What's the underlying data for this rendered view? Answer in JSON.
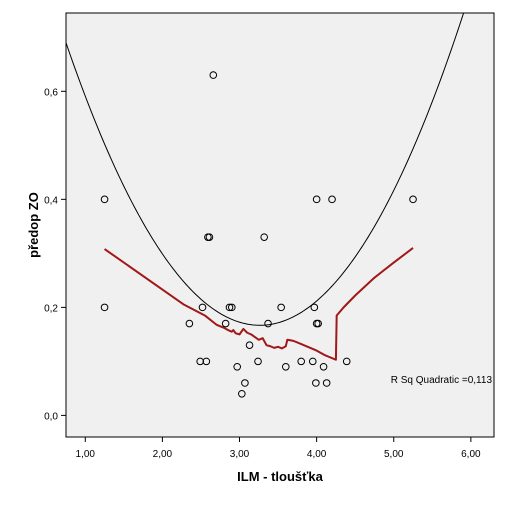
{
  "chart_data": {
    "type": "scatter",
    "xlabel": "ILM - tloušťka",
    "ylabel": "předop ZO",
    "xlim": [
      0.75,
      6.3
    ],
    "ylim": [
      -0.04,
      0.745
    ],
    "x_ticks": [
      1.0,
      2.0,
      3.0,
      4.0,
      5.0,
      6.0
    ],
    "x_tick_labels": [
      "1,00",
      "2,00",
      "3,00",
      "4,00",
      "5,00",
      "6,00"
    ],
    "y_ticks": [
      0.0,
      0.2,
      0.4,
      0.6
    ],
    "y_tick_labels": [
      "0,0",
      "0,2",
      "0,4",
      "0,6"
    ],
    "grid": false,
    "colors": {
      "plot_background": "#f0f0f0",
      "points": "#000000",
      "quadratic_fit": "#000000",
      "loess_line": "#a01818"
    },
    "points": [
      {
        "x": 1.25,
        "y": 0.4
      },
      {
        "x": 1.25,
        "y": 0.2
      },
      {
        "x": 2.35,
        "y": 0.17
      },
      {
        "x": 2.49,
        "y": 0.1
      },
      {
        "x": 2.52,
        "y": 0.2
      },
      {
        "x": 2.57,
        "y": 0.1
      },
      {
        "x": 2.59,
        "y": 0.33
      },
      {
        "x": 2.61,
        "y": 0.33
      },
      {
        "x": 2.66,
        "y": 0.63
      },
      {
        "x": 2.82,
        "y": 0.17
      },
      {
        "x": 2.87,
        "y": 0.2
      },
      {
        "x": 2.9,
        "y": 0.2
      },
      {
        "x": 2.97,
        "y": 0.09
      },
      {
        "x": 3.03,
        "y": 0.04
      },
      {
        "x": 3.07,
        "y": 0.06
      },
      {
        "x": 3.13,
        "y": 0.13
      },
      {
        "x": 3.24,
        "y": 0.1
      },
      {
        "x": 3.32,
        "y": 0.33
      },
      {
        "x": 3.37,
        "y": 0.17
      },
      {
        "x": 3.54,
        "y": 0.2
      },
      {
        "x": 3.6,
        "y": 0.09
      },
      {
        "x": 3.8,
        "y": 0.1
      },
      {
        "x": 3.95,
        "y": 0.1
      },
      {
        "x": 3.97,
        "y": 0.2
      },
      {
        "x": 3.99,
        "y": 0.06
      },
      {
        "x": 4.0,
        "y": 0.17
      },
      {
        "x": 4.02,
        "y": 0.17
      },
      {
        "x": 4.0,
        "y": 0.4
      },
      {
        "x": 4.09,
        "y": 0.09
      },
      {
        "x": 4.13,
        "y": 0.06
      },
      {
        "x": 4.2,
        "y": 0.4
      },
      {
        "x": 4.39,
        "y": 0.1
      },
      {
        "x": 5.25,
        "y": 0.4
      }
    ],
    "quadratic_fit": {
      "label": "R Sq Quadratic =0,113",
      "coefficients": {
        "a": 0.0828,
        "b": -0.5404,
        "c": 1.0486
      },
      "x_range": [
        0.75,
        6.3
      ]
    },
    "loess_line": [
      [
        1.25,
        0.308
      ],
      [
        2.28,
        0.205
      ],
      [
        2.55,
        0.185
      ],
      [
        2.7,
        0.168
      ],
      [
        2.75,
        0.165
      ],
      [
        2.8,
        0.162
      ],
      [
        2.85,
        0.158
      ],
      [
        2.9,
        0.155
      ],
      [
        2.92,
        0.158
      ],
      [
        2.95,
        0.152
      ],
      [
        3.0,
        0.15
      ],
      [
        3.05,
        0.16
      ],
      [
        3.1,
        0.153
      ],
      [
        3.15,
        0.15
      ],
      [
        3.2,
        0.145
      ],
      [
        3.25,
        0.14
      ],
      [
        3.3,
        0.143
      ],
      [
        3.35,
        0.13
      ],
      [
        3.4,
        0.128
      ],
      [
        3.45,
        0.125
      ],
      [
        3.5,
        0.127
      ],
      [
        3.55,
        0.124
      ],
      [
        3.6,
        0.128
      ],
      [
        3.62,
        0.14
      ],
      [
        3.7,
        0.138
      ],
      [
        3.8,
        0.132
      ],
      [
        3.9,
        0.126
      ],
      [
        4.0,
        0.12
      ],
      [
        4.1,
        0.112
      ],
      [
        4.25,
        0.103
      ],
      [
        4.26,
        0.185
      ],
      [
        4.35,
        0.2
      ],
      [
        4.5,
        0.222
      ],
      [
        4.75,
        0.255
      ],
      [
        5.0,
        0.283
      ],
      [
        5.25,
        0.31
      ]
    ]
  }
}
